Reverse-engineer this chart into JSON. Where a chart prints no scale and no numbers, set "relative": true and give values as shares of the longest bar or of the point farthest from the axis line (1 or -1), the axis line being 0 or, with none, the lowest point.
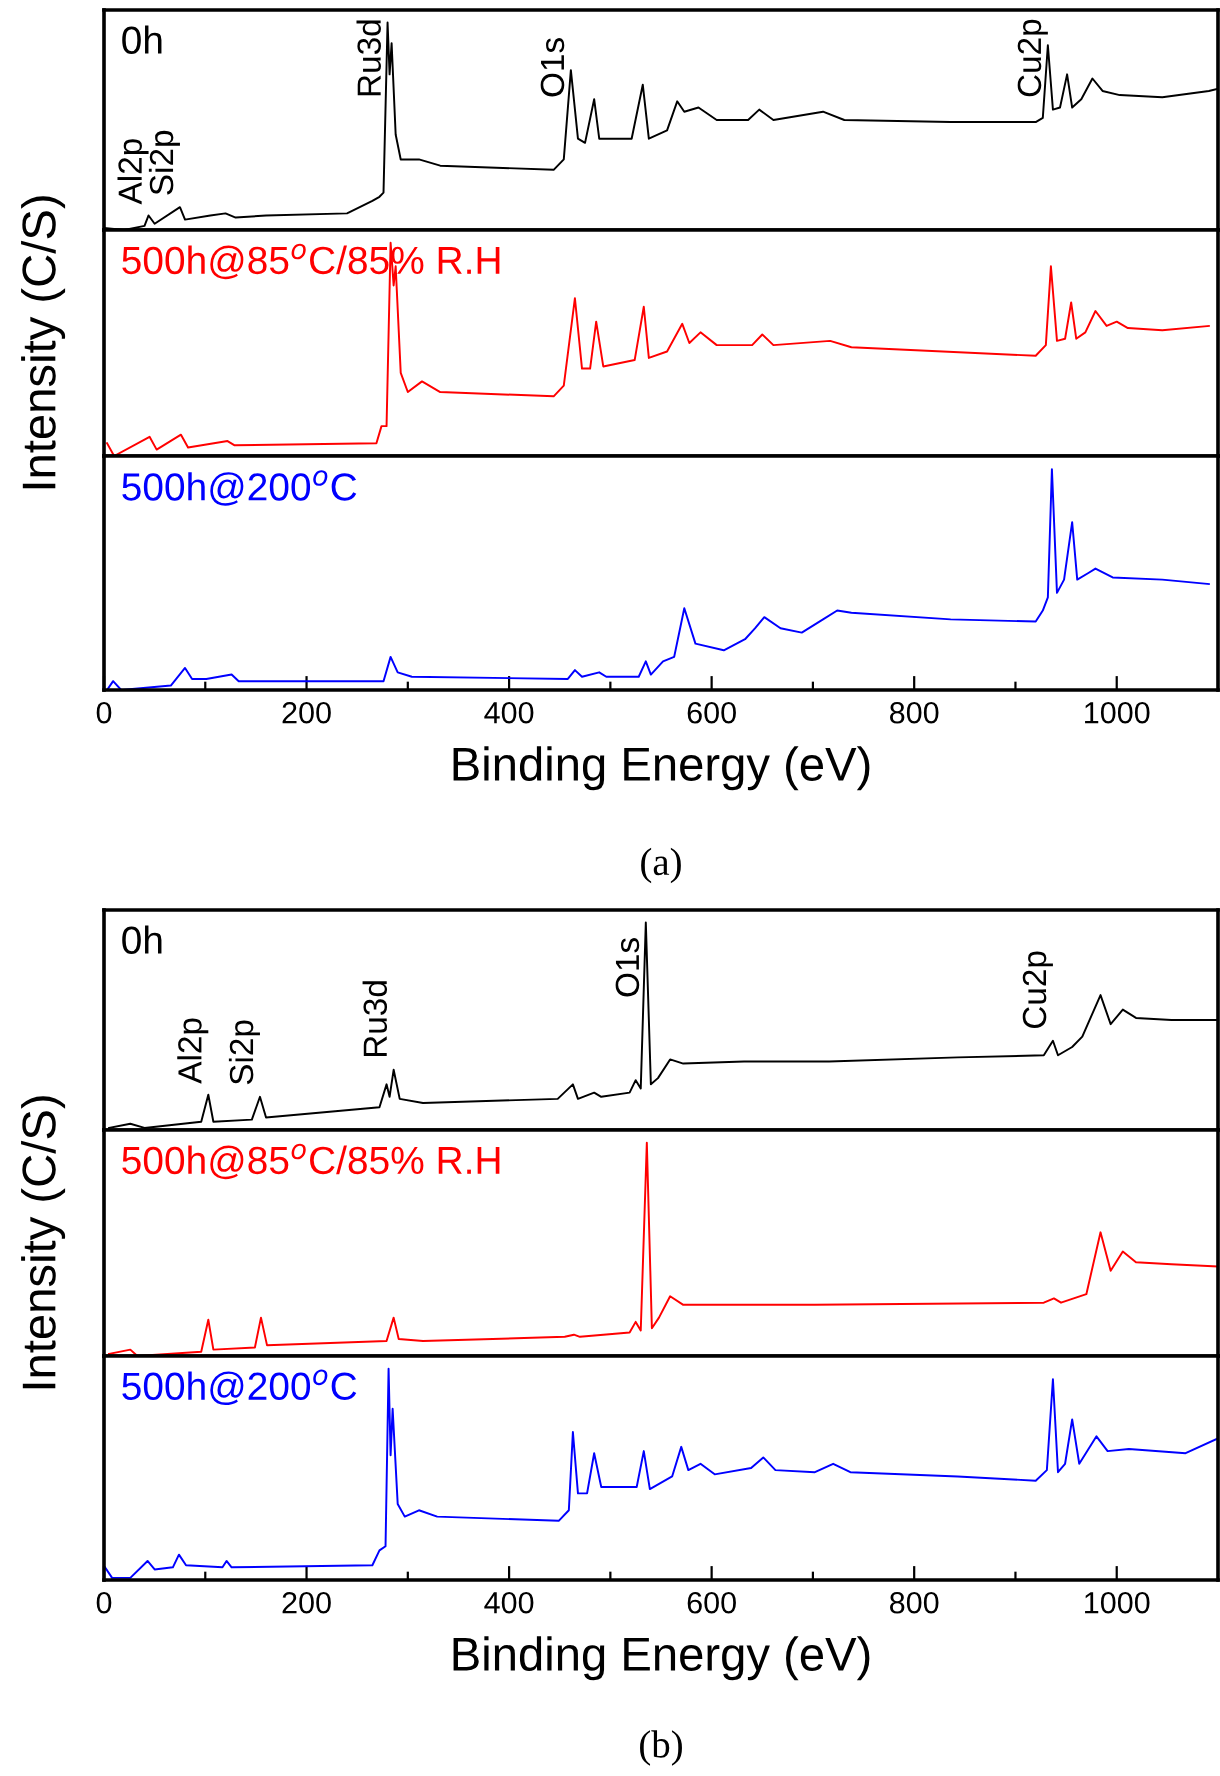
{
  "chart_data": [
    {
      "type": "line",
      "relative": true,
      "xlim": [
        0,
        1100
      ],
      "tick_labels": false,
      "x": [
        0,
        20,
        40,
        44,
        50,
        75,
        80,
        105,
        120,
        130,
        160,
        240,
        265,
        272,
        276,
        280,
        282,
        284,
        288,
        293,
        311,
        332,
        444,
        454,
        461,
        468,
        475,
        484,
        489,
        521,
        532,
        538,
        556,
        566,
        573,
        587,
        605,
        636,
        647,
        661,
        710,
        731,
        836,
        920,
        927,
        932,
        937,
        944,
        951,
        956,
        965,
        976,
        986,
        1003,
        1045,
        1091,
        1100
      ],
      "series": [
        {
          "name": "0h",
          "color": "#000000",
          "values": [
            0.01,
            0,
            0.02,
            0.07,
            0.03,
            0.11,
            0.05,
            0.07,
            0.08,
            0.06,
            0.07,
            0.08,
            0.14,
            0.16,
            0.18,
            1.0,
            0.75,
            0.9,
            0.46,
            0.34,
            0.34,
            0.31,
            0.29,
            0.34,
            0.77,
            0.44,
            0.42,
            0.63,
            0.44,
            0.44,
            0.7,
            0.44,
            0.48,
            0.62,
            0.57,
            0.59,
            0.53,
            0.53,
            0.58,
            0.53,
            0.57,
            0.53,
            0.52,
            0.52,
            0.54,
            0.89,
            0.58,
            0.59,
            0.75,
            0.59,
            0.63,
            0.73,
            0.67,
            0.65,
            0.64,
            0.67,
            0.68
          ]
        }
      ],
      "annotations": [
        {
          "text": "Al2p",
          "x": 44,
          "y": 0.07
        },
        {
          "text": "Si2p",
          "x": 75,
          "y": 0.11
        },
        {
          "text": "Ru3d",
          "x": 280,
          "y": 1.0
        },
        {
          "text": "O1s",
          "x": 461,
          "y": 0.77
        },
        {
          "text": "Cu2p",
          "x": 932,
          "y": 0.89
        }
      ]
    },
    {
      "type": "line",
      "relative": true,
      "xlim": [
        0,
        1100
      ],
      "tick_labels": false,
      "ylabel": "Intensity (C/S)",
      "x": [
        3,
        10,
        45,
        52,
        76,
        83,
        122,
        129,
        269,
        274,
        279,
        283,
        286,
        288,
        293,
        300,
        314,
        332,
        444,
        454,
        465,
        472,
        480,
        486,
        493,
        524,
        533,
        538,
        556,
        571,
        578,
        589,
        605,
        640,
        650,
        661,
        717,
        738,
        920,
        930,
        935,
        941,
        949,
        955,
        960,
        969,
        979,
        990,
        1000,
        1011,
        1045,
        1091
      ],
      "series": [
        {
          "name": "500h@85$^{o}$C/85% R.H",
          "color": "#ff0000",
          "values": [
            0.06,
            0,
            0.09,
            0.03,
            0.1,
            0.04,
            0.07,
            0.05,
            0.06,
            0.14,
            0.14,
            1.0,
            0.8,
            0.89,
            0.39,
            0.3,
            0.35,
            0.3,
            0.28,
            0.33,
            0.74,
            0.41,
            0.41,
            0.63,
            0.42,
            0.45,
            0.7,
            0.46,
            0.49,
            0.62,
            0.53,
            0.58,
            0.52,
            0.52,
            0.57,
            0.52,
            0.54,
            0.51,
            0.47,
            0.52,
            0.89,
            0.54,
            0.55,
            0.72,
            0.55,
            0.58,
            0.68,
            0.61,
            0.63,
            0.6,
            0.59,
            0.61
          ]
        }
      ]
    },
    {
      "type": "line",
      "relative": true,
      "xlim": [
        0,
        1100
      ],
      "tick_labels": "x",
      "xlabel": "Binding Energy (eV)",
      "xticks": [
        0,
        {
          "value": 100,
          "label": null
        },
        200,
        {
          "value": 300,
          "label": null
        },
        400,
        {
          "value": 500,
          "label": null
        },
        600,
        {
          "value": 700,
          "label": null
        },
        800,
        {
          "value": 900,
          "label": null
        },
        1000
      ],
      "x": [
        3,
        9,
        17,
        66,
        80,
        87,
        101,
        126,
        133,
        276,
        283,
        290,
        304,
        458,
        465,
        472,
        489,
        496,
        528,
        535,
        540,
        552,
        563,
        573,
        584,
        612,
        633,
        643,
        652,
        668,
        689,
        710,
        724,
        738,
        836,
        920,
        927,
        932,
        936,
        941,
        948,
        956,
        961,
        972,
        979,
        996,
        1045,
        1091
      ],
      "series": [
        {
          "name": "500h@200$^{o}$C",
          "color": "#0000ff",
          "values": [
            0,
            0.04,
            0,
            0.02,
            0.1,
            0.05,
            0.05,
            0.07,
            0.04,
            0.04,
            0.15,
            0.08,
            0.06,
            0.05,
            0.09,
            0.06,
            0.08,
            0.06,
            0.06,
            0.13,
            0.07,
            0.13,
            0.15,
            0.37,
            0.21,
            0.18,
            0.23,
            0.28,
            0.33,
            0.28,
            0.26,
            0.32,
            0.36,
            0.35,
            0.32,
            0.31,
            0.36,
            0.42,
            1.0,
            0.44,
            0.5,
            0.76,
            0.5,
            0.53,
            0.55,
            0.51,
            0.5,
            0.48
          ]
        }
      ],
      "annotations": [
        "(a)"
      ]
    },
    {
      "type": "line",
      "relative": true,
      "xlim": [
        0,
        1100
      ],
      "tick_labels": false,
      "x": [
        5,
        26,
        40,
        96,
        103,
        108,
        146,
        154,
        160,
        272,
        279,
        282,
        286,
        292,
        315,
        448,
        463,
        468,
        484,
        491,
        519,
        525,
        530,
        535,
        540,
        547,
        559,
        572,
        632,
        716,
        843,
        928,
        937,
        942,
        956,
        966,
        984,
        994,
        1006,
        1019,
        1054,
        1100
      ],
      "series": [
        {
          "name": "0h",
          "color": "#000000",
          "values": [
            0.01,
            0.03,
            0.01,
            0.04,
            0.17,
            0.04,
            0.05,
            0.16,
            0.06,
            0.11,
            0.22,
            0.16,
            0.29,
            0.15,
            0.13,
            0.15,
            0.22,
            0.15,
            0.18,
            0.16,
            0.18,
            0.24,
            0.2,
            1.0,
            0.22,
            0.25,
            0.34,
            0.32,
            0.33,
            0.33,
            0.35,
            0.36,
            0.43,
            0.36,
            0.4,
            0.45,
            0.65,
            0.51,
            0.58,
            0.54,
            0.53,
            0.53
          ]
        }
      ],
      "annotations": [
        {
          "text": "Al2p",
          "x": 103,
          "y": 0.17
        },
        {
          "text": "Si2p",
          "x": 154,
          "y": 0.16
        },
        {
          "text": "Ru3d",
          "x": 286,
          "y": 0.29
        },
        {
          "text": "O1s",
          "x": 535,
          "y": 1.0
        },
        {
          "text": "Cu2p",
          "x": 937,
          "y": 0.43
        }
      ]
    },
    {
      "type": "line",
      "relative": true,
      "xlim": [
        0,
        1100
      ],
      "tick_labels": false,
      "ylabel": "Intensity (C/S)",
      "x": [
        5,
        26,
        33,
        96,
        103,
        108,
        149,
        155,
        161,
        279,
        286,
        291,
        315,
        455,
        464,
        470,
        519,
        525,
        530,
        536,
        541,
        548,
        559,
        572,
        702,
        928,
        938,
        945,
        970,
        984,
        994,
        1006,
        1019,
        1054,
        1100
      ],
      "series": [
        {
          "name": "500h@85$^{o}$C/85% R.H",
          "color": "#ff0000",
          "values": [
            0.01,
            0.03,
            0,
            0.02,
            0.17,
            0.03,
            0.04,
            0.18,
            0.05,
            0.07,
            0.18,
            0.08,
            0.07,
            0.09,
            0.1,
            0.09,
            0.11,
            0.16,
            0.12,
            1.0,
            0.13,
            0.18,
            0.28,
            0.24,
            0.24,
            0.25,
            0.27,
            0.25,
            0.29,
            0.58,
            0.4,
            0.49,
            0.44,
            0.43,
            0.42
          ]
        }
      ]
    },
    {
      "type": "line",
      "relative": true,
      "xlim": [
        0,
        1100
      ],
      "tick_labels": "x",
      "xlabel": "Binding Energy (eV)",
      "xticks": [
        0,
        {
          "value": 100,
          "label": null
        },
        200,
        {
          "value": 300,
          "label": null
        },
        400,
        {
          "value": 500,
          "label": null
        },
        600,
        {
          "value": 700,
          "label": null
        },
        800,
        {
          "value": 900,
          "label": null
        },
        1000
      ],
      "x": [
        1,
        8,
        26,
        43,
        50,
        68,
        74,
        81,
        117,
        121,
        126,
        265,
        272,
        278,
        281,
        283,
        285,
        290,
        297,
        311,
        329,
        449,
        459,
        463,
        468,
        477,
        484,
        491,
        526,
        533,
        539,
        561,
        570,
        577,
        589,
        603,
        639,
        651,
        663,
        702,
        720,
        737,
        843,
        920,
        931,
        937,
        942,
        949,
        956,
        963,
        980,
        991,
        1012,
        1068,
        1100
      ],
      "series": [
        {
          "name": "500h@200$^{o}$C",
          "color": "#0000ff",
          "values": [
            0.06,
            0.01,
            0.01,
            0.09,
            0.05,
            0.06,
            0.12,
            0.07,
            0.06,
            0.09,
            0.06,
            0.07,
            0.14,
            0.16,
            1.0,
            0.59,
            0.81,
            0.36,
            0.3,
            0.33,
            0.3,
            0.28,
            0.33,
            0.7,
            0.41,
            0.41,
            0.6,
            0.44,
            0.44,
            0.61,
            0.43,
            0.49,
            0.63,
            0.52,
            0.55,
            0.5,
            0.53,
            0.58,
            0.52,
            0.51,
            0.55,
            0.51,
            0.49,
            0.47,
            0.52,
            0.95,
            0.51,
            0.55,
            0.76,
            0.55,
            0.68,
            0.61,
            0.62,
            0.6,
            0.67
          ]
        }
      ],
      "annotations": [
        "(b)"
      ]
    }
  ]
}
